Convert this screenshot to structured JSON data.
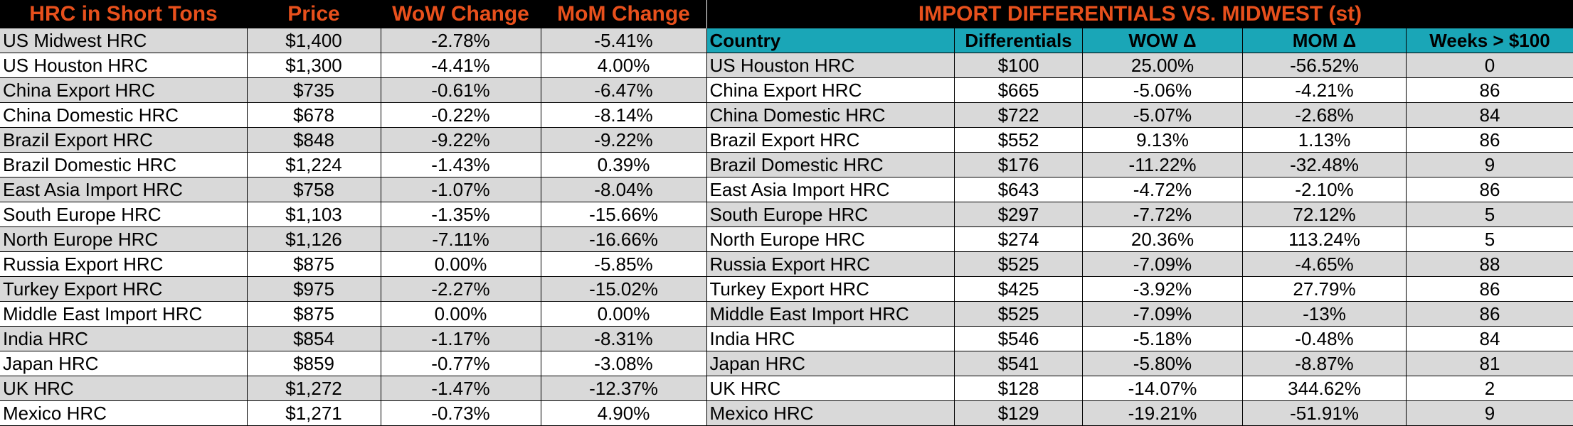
{
  "left": {
    "headers": [
      "HRC in Short Tons",
      "Price",
      "WoW Change",
      "MoM Change"
    ],
    "rows": [
      [
        "US Midwest HRC",
        "$1,400",
        "-2.78%",
        "-5.41%"
      ],
      [
        "US Houston HRC",
        "$1,300",
        "-4.41%",
        "4.00%"
      ],
      [
        "China Export HRC",
        "$735",
        "-0.61%",
        "-6.47%"
      ],
      [
        "China Domestic HRC",
        "$678",
        "-0.22%",
        "-8.14%"
      ],
      [
        "Brazil Export HRC",
        "$848",
        "-9.22%",
        "-9.22%"
      ],
      [
        "Brazil Domestic HRC",
        "$1,224",
        "-1.43%",
        "0.39%"
      ],
      [
        "East Asia Import HRC",
        "$758",
        "-1.07%",
        "-8.04%"
      ],
      [
        "South Europe HRC",
        "$1,103",
        "-1.35%",
        "-15.66%"
      ],
      [
        "North Europe HRC",
        "$1,126",
        "-7.11%",
        "-16.66%"
      ],
      [
        "Russia Export HRC",
        "$875",
        "0.00%",
        "-5.85%"
      ],
      [
        "Turkey Export HRC",
        "$975",
        "-2.27%",
        "-15.02%"
      ],
      [
        "Middle East Import HRC",
        "$875",
        "0.00%",
        "0.00%"
      ],
      [
        "India HRC",
        "$854",
        "-1.17%",
        "-8.31%"
      ],
      [
        "Japan HRC",
        "$859",
        "-0.77%",
        "-3.08%"
      ],
      [
        "UK HRC",
        "$1,272",
        "-1.47%",
        "-12.37%"
      ],
      [
        "Mexico HRC",
        "$1,271",
        "-0.73%",
        "4.90%"
      ]
    ]
  },
  "right": {
    "title": "IMPORT DIFFERENTIALS VS. MIDWEST (st)",
    "headers": [
      "Country",
      "Differentials",
      "WOW Δ",
      "MOM Δ",
      "Weeks > $100"
    ],
    "rows": [
      [
        "US Houston HRC",
        "$100",
        "25.00%",
        "-56.52%",
        "0"
      ],
      [
        "China Export HRC",
        "$665",
        "-5.06%",
        "-4.21%",
        "86"
      ],
      [
        "China Domestic HRC",
        "$722",
        "-5.07%",
        "-2.68%",
        "84"
      ],
      [
        "Brazil Export HRC",
        "$552",
        "9.13%",
        "1.13%",
        "86"
      ],
      [
        "Brazil Domestic HRC",
        "$176",
        "-11.22%",
        "-32.48%",
        "9"
      ],
      [
        "East Asia Import HRC",
        "$643",
        "-4.72%",
        "-2.10%",
        "86"
      ],
      [
        "South Europe HRC",
        "$297",
        "-7.72%",
        "72.12%",
        "5"
      ],
      [
        "North Europe HRC",
        "$274",
        "20.36%",
        "113.24%",
        "5"
      ],
      [
        "Russia Export HRC",
        "$525",
        "-7.09%",
        "-4.65%",
        "88"
      ],
      [
        "Turkey Export HRC",
        "$425",
        "-3.92%",
        "27.79%",
        "86"
      ],
      [
        "Middle East Import HRC",
        "$525",
        "-7.09%",
        "-13%",
        "86"
      ],
      [
        "India HRC",
        "$546",
        "-5.18%",
        "-0.48%",
        "84"
      ],
      [
        "Japan HRC",
        "$541",
        "-5.80%",
        "-8.87%",
        "81"
      ],
      [
        "UK HRC",
        "$128",
        "-14.07%",
        "344.62%",
        "2"
      ],
      [
        "Mexico HRC",
        "$129",
        "-19.21%",
        "-51.91%",
        "9"
      ]
    ]
  },
  "colors": {
    "header_bg": "#000000",
    "header_text": "#e8501c",
    "subheader_bg": "#1aa6b7",
    "shade_row": "#d9d9d9"
  }
}
